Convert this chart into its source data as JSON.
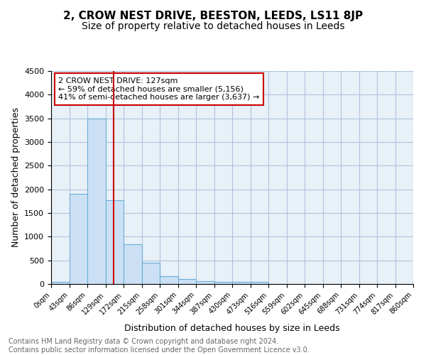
{
  "title": "2, CROW NEST DRIVE, BEESTON, LEEDS, LS11 8JP",
  "subtitle": "Size of property relative to detached houses in Leeds",
  "xlabel": "Distribution of detached houses by size in Leeds",
  "ylabel": "Number of detached properties",
  "bin_labels": [
    "0sqm",
    "43sqm",
    "86sqm",
    "129sqm",
    "172sqm",
    "215sqm",
    "258sqm",
    "301sqm",
    "344sqm",
    "387sqm",
    "430sqm",
    "473sqm",
    "516sqm",
    "559sqm",
    "602sqm",
    "645sqm",
    "688sqm",
    "731sqm",
    "774sqm",
    "817sqm",
    "860sqm"
  ],
  "bar_heights": [
    50,
    1900,
    3500,
    1775,
    840,
    450,
    165,
    100,
    65,
    50,
    45,
    50,
    0,
    0,
    0,
    0,
    0,
    0,
    0,
    0
  ],
  "bar_color": "#cce0f5",
  "bar_edge_color": "#6aaed6",
  "annotation_text": "2 CROW NEST DRIVE: 127sqm\n← 59% of detached houses are smaller (5,156)\n41% of semi-detached houses are larger (3,637) →",
  "annotation_box_color": "#ffffff",
  "annotation_box_edge_color": "#cc0000",
  "red_line_color": "#cc0000",
  "ylim": [
    0,
    4500
  ],
  "yticks": [
    0,
    500,
    1000,
    1500,
    2000,
    2500,
    3000,
    3500,
    4000,
    4500
  ],
  "grid_color": "#b0c4de",
  "background_color": "#e8f0f8",
  "footer_text": "Contains HM Land Registry data © Crown copyright and database right 2024.\nContains public sector information licensed under the Open Government Licence v3.0.",
  "title_fontsize": 11,
  "subtitle_fontsize": 10,
  "xlabel_fontsize": 9,
  "ylabel_fontsize": 9,
  "annotation_fontsize": 8,
  "footer_fontsize": 7
}
